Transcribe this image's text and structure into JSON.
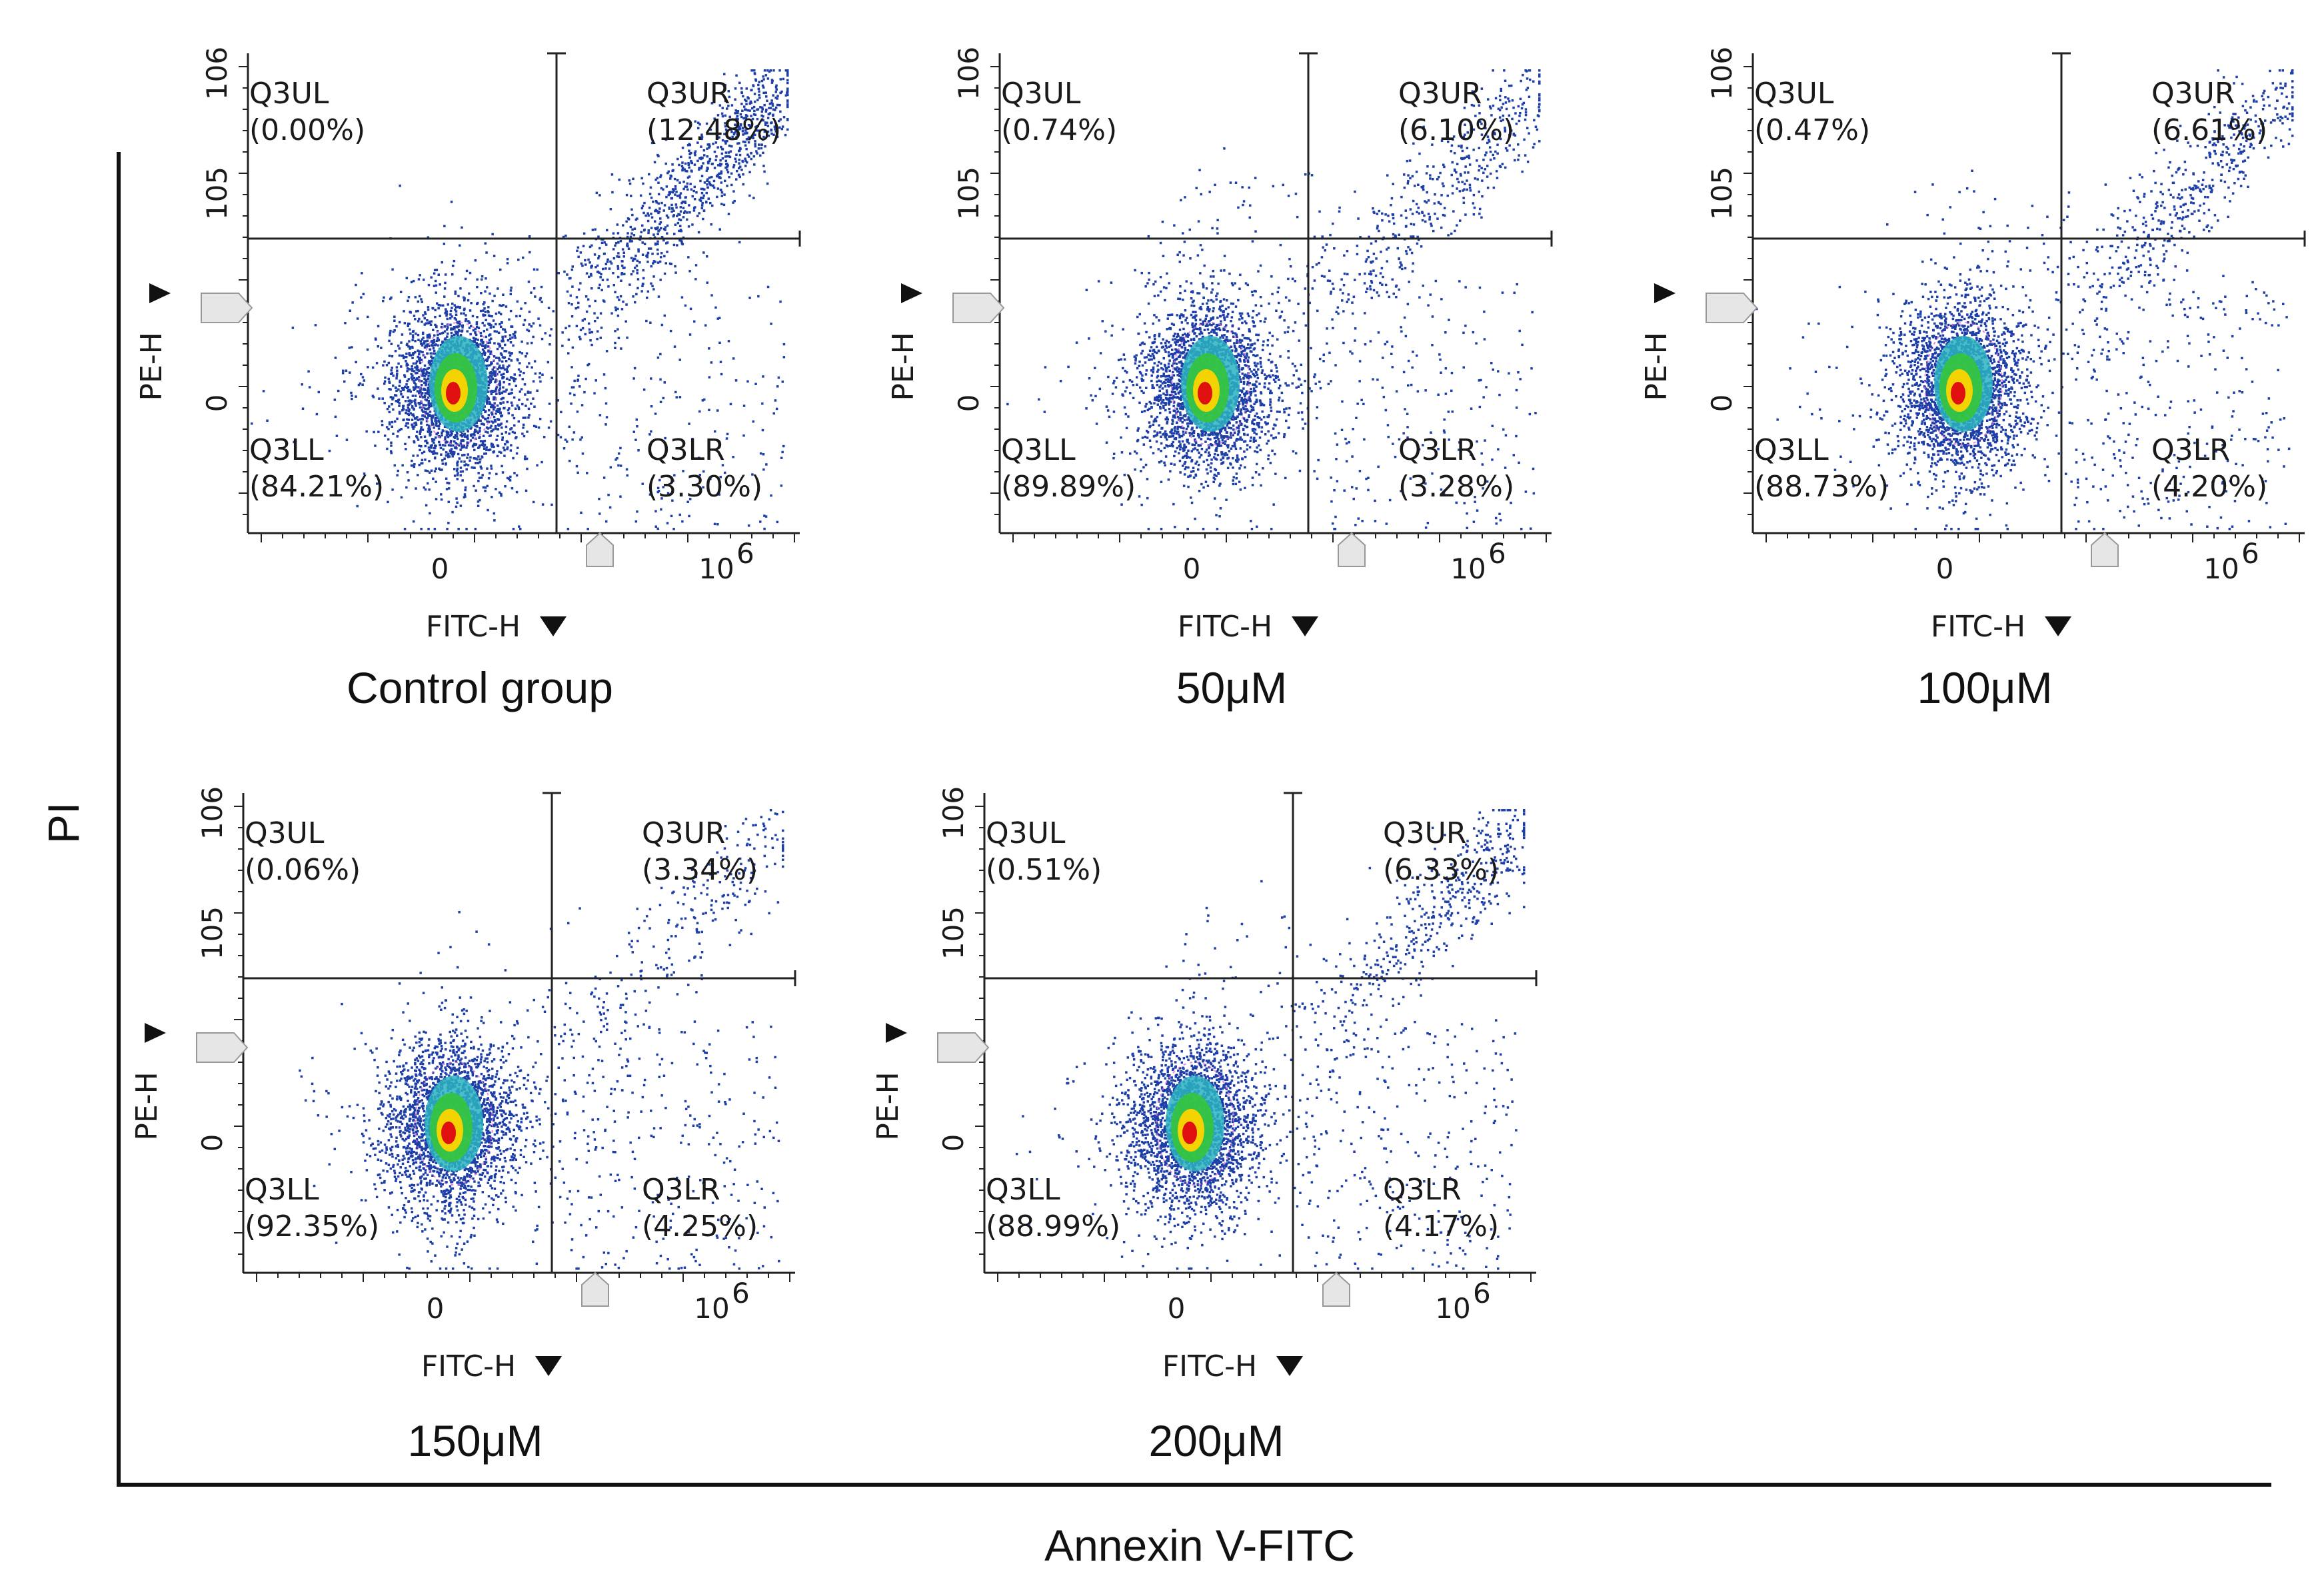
{
  "figure": {
    "y_axis_label": "PI",
    "x_axis_label": "Annexin V-FITC"
  },
  "chart_data": [
    {
      "type": "scatter",
      "subtype": "flow-cytometry-quadrant",
      "title": "Control group",
      "xlabel": "FITC-H",
      "ylabel": "PE-H",
      "x_ticks": [
        "0",
        "10^6"
      ],
      "y_ticks": [
        "0",
        "10^5",
        "10^6"
      ],
      "quadrants": [
        {
          "name": "Q3UL",
          "percent": "(0.00%)",
          "value": 0.0
        },
        {
          "name": "Q3UR",
          "percent": "(12.48%)",
          "value": 12.48
        },
        {
          "name": "Q3LL",
          "percent": "(84.21%)",
          "value": 84.21
        },
        {
          "name": "Q3LR",
          "percent": "(3.30%)",
          "value": 3.3
        }
      ]
    },
    {
      "type": "scatter",
      "subtype": "flow-cytometry-quadrant",
      "title": "50μM",
      "xlabel": "FITC-H",
      "ylabel": "PE-H",
      "x_ticks": [
        "0",
        "10^6"
      ],
      "y_ticks": [
        "0",
        "10^5",
        "10^6"
      ],
      "quadrants": [
        {
          "name": "Q3UL",
          "percent": "(0.74%)",
          "value": 0.74
        },
        {
          "name": "Q3UR",
          "percent": "(6.10%)",
          "value": 6.1
        },
        {
          "name": "Q3LL",
          "percent": "(89.89%)",
          "value": 89.89
        },
        {
          "name": "Q3LR",
          "percent": "(3.28%)",
          "value": 3.28
        }
      ]
    },
    {
      "type": "scatter",
      "subtype": "flow-cytometry-quadrant",
      "title": "100μM",
      "xlabel": "FITC-H",
      "ylabel": "PE-H",
      "x_ticks": [
        "0",
        "10^6"
      ],
      "y_ticks": [
        "0",
        "10^5",
        "10^6"
      ],
      "quadrants": [
        {
          "name": "Q3UL",
          "percent": "(0.47%)",
          "value": 0.47
        },
        {
          "name": "Q3UR",
          "percent": "(6.61%)",
          "value": 6.61
        },
        {
          "name": "Q3LL",
          "percent": "(88.73%)",
          "value": 88.73
        },
        {
          "name": "Q3LR",
          "percent": "(4.20%)",
          "value": 4.2
        }
      ]
    },
    {
      "type": "scatter",
      "subtype": "flow-cytometry-quadrant",
      "title": "150μM",
      "xlabel": "FITC-H",
      "ylabel": "PE-H",
      "x_ticks": [
        "0",
        "10^6"
      ],
      "y_ticks": [
        "0",
        "10^5",
        "10^6"
      ],
      "quadrants": [
        {
          "name": "Q3UL",
          "percent": "(0.06%)",
          "value": 0.06
        },
        {
          "name": "Q3UR",
          "percent": "(3.34%)",
          "value": 3.34
        },
        {
          "name": "Q3LL",
          "percent": "(92.35%)",
          "value": 92.35
        },
        {
          "name": "Q3LR",
          "percent": "(4.25%)",
          "value": 4.25
        }
      ]
    },
    {
      "type": "scatter",
      "subtype": "flow-cytometry-quadrant",
      "title": "200μM",
      "xlabel": "FITC-H",
      "ylabel": "PE-H",
      "x_ticks": [
        "0",
        "10^6"
      ],
      "y_ticks": [
        "0",
        "10^5",
        "10^6"
      ],
      "quadrants": [
        {
          "name": "Q3UL",
          "percent": "(0.51%)",
          "value": 0.51
        },
        {
          "name": "Q3UR",
          "percent": "(6.33%)",
          "value": 6.33
        },
        {
          "name": "Q3LL",
          "percent": "(88.99%)",
          "value": 88.99
        },
        {
          "name": "Q3LR",
          "percent": "(4.17%)",
          "value": 4.17
        }
      ]
    }
  ],
  "colors": {
    "dots": "#1f3fa8",
    "density_mid": "#2bb3c0",
    "density_high": "#35c43a",
    "density_peak": "#ffd400",
    "density_core": "#e01010",
    "gate_line": "#222222"
  }
}
